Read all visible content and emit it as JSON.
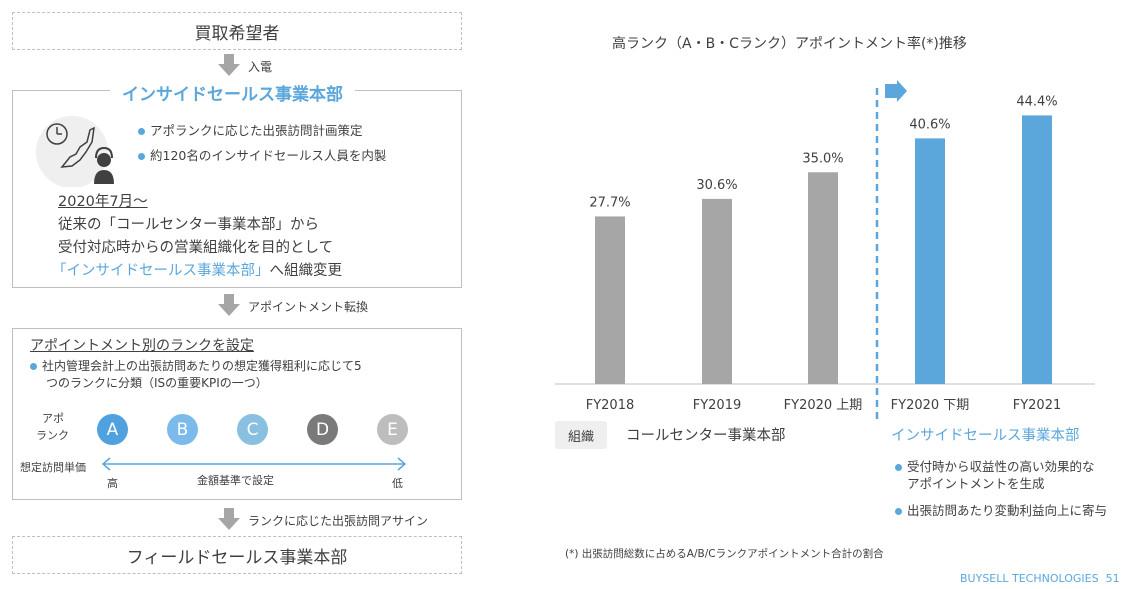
{
  "left": {
    "buyer_box": "買取希望者",
    "arrow1_label": "入電",
    "inside_title": "インサイドセールス事業本部",
    "inside_bullets": [
      "アポランクに応じた出張訪問計画策定",
      "約120名のインサイドセールス人員を内製"
    ],
    "date_line": "2020年7月～",
    "desc_line1": "従来の「コールセンター事業本部」から",
    "desc_line2": "受付対応時からの営業組織化を目的として",
    "desc_line3_blue": "「インサイドセールス事業本部」",
    "desc_line3_rest": "へ組織変更",
    "arrow2_label": "アポイントメント転換",
    "rank_title": "アポイントメント別のランクを設定",
    "rank_bullet_line1": "社内管理会計上の出張訪問あたりの想定獲得粗利に応じて5",
    "rank_bullet_line2": "つのランクに分類（ISの重要KPIの一つ）",
    "rank_label_line1": "アポ",
    "rank_label_line2": "ランク",
    "ranks": [
      {
        "letter": "A",
        "color": "#4fa1df"
      },
      {
        "letter": "B",
        "color": "#7bbaea"
      },
      {
        "letter": "C",
        "color": "#89bfe0"
      },
      {
        "letter": "D",
        "color": "#7a7a7a"
      },
      {
        "letter": "E",
        "color": "#bdbdbd"
      }
    ],
    "unit_price_label": "想定訪問単価",
    "high_label": "高",
    "basis_label": "金額基準で設定",
    "low_label": "低",
    "arrow3_label": "ランクに応じた出張訪問アサイン",
    "field_box": "フィールドセールス事業本部"
  },
  "right": {
    "title": "高ランク（A・B・Cランク）アポイントメント率(*)推移",
    "org_tag": "組織",
    "call_center_label": "コールセンター事業本部",
    "inside_sales_label": "インサイドセールス事業本部",
    "bullets": [
      {
        "line1": "受付時から収益性の高い効果的な",
        "line2": "アポイントメントを生成"
      },
      {
        "line1": "出張訪問あたり変動利益向上に寄与",
        "line2": ""
      }
    ],
    "footnote": "(*) 出張訪問総数に占めるA/B/Cランクアポイントメント合計の割合",
    "footer": "BUYSELL TECHNOLOGIES  51"
  },
  "colors": {
    "accent": "#5ba7dc",
    "gray_bar": "#a6a6a6",
    "blue_bar": "#5ba7dc"
  },
  "chart_data": {
    "type": "bar",
    "title": "高ランク（A・B・Cランク）アポイントメント率(*)推移",
    "categories": [
      "FY2018",
      "FY2019",
      "FY2020 上期",
      "FY2020 下期",
      "FY2021"
    ],
    "values": [
      27.7,
      30.6,
      35.0,
      40.6,
      44.4
    ],
    "labels": [
      "27.7%",
      "30.6%",
      "35.0%",
      "40.6%",
      "44.4%"
    ],
    "bar_colors": [
      "#a6a6a6",
      "#a6a6a6",
      "#a6a6a6",
      "#5ba7dc",
      "#5ba7dc"
    ],
    "ylim": [
      0,
      50
    ],
    "grid": false
  }
}
